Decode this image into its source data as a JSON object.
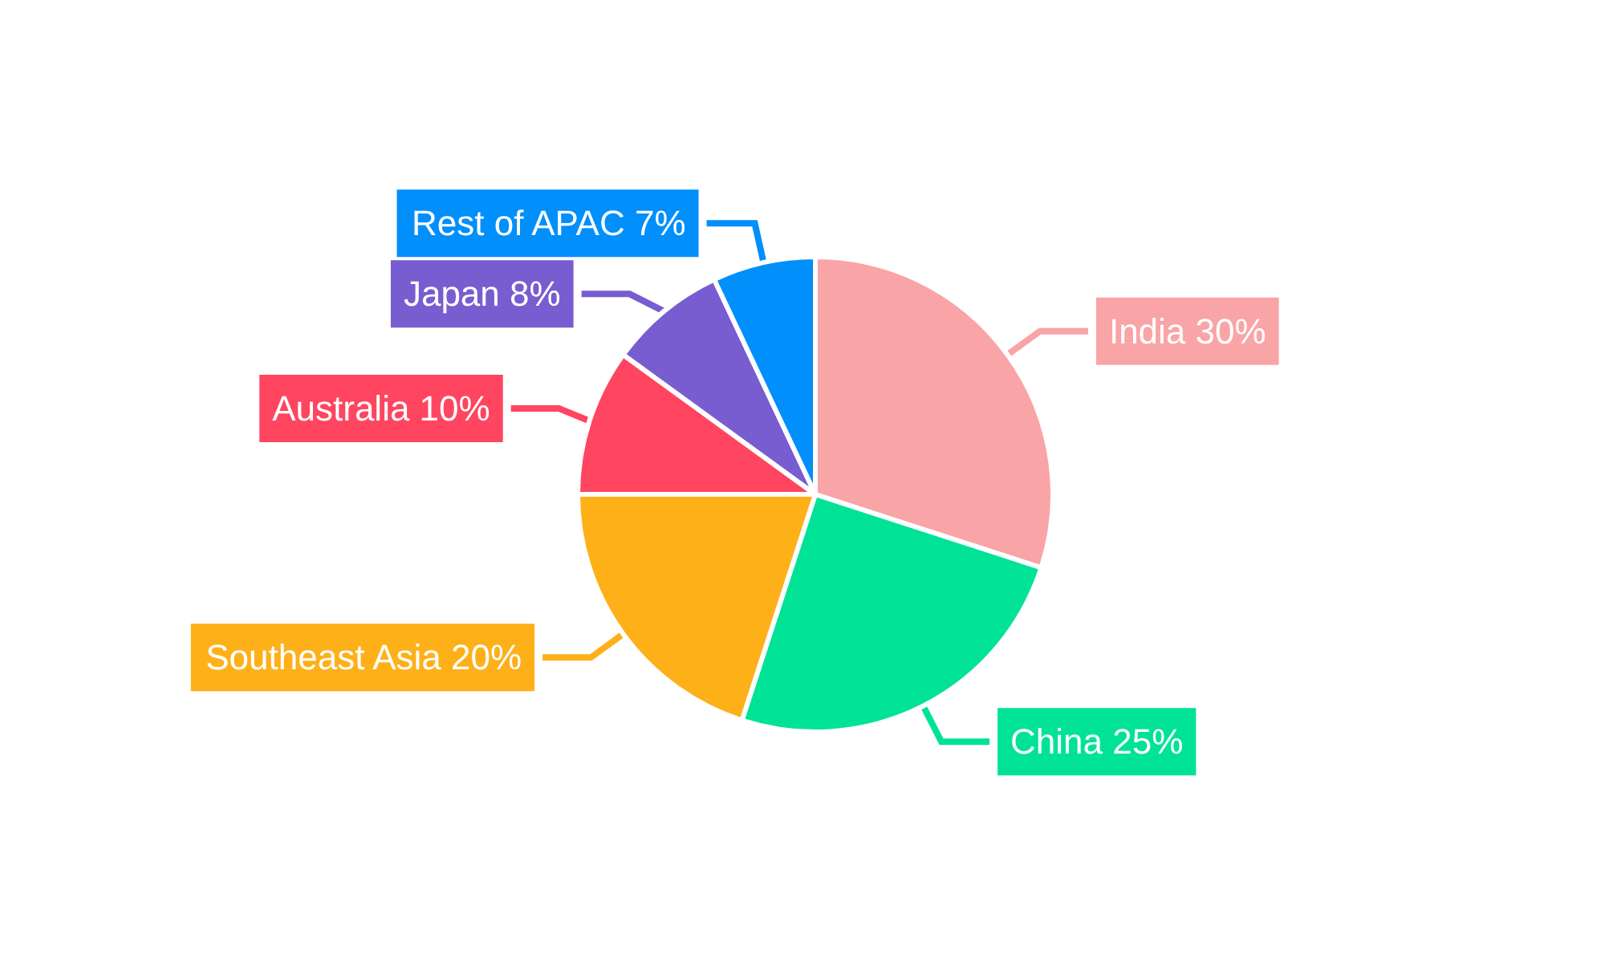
{
  "chart_data": {
    "type": "pie",
    "categories": [
      "India",
      "China",
      "Southeast Asia",
      "Australia",
      "Japan",
      "Rest of APAC"
    ],
    "values": [
      30,
      25,
      20,
      10,
      8,
      7
    ],
    "value_labels": [
      "30%",
      "25%",
      "20%",
      "10%",
      "8%",
      "7%"
    ],
    "colors": [
      "#f9a4a6",
      "#00e396",
      "#feb019",
      "#ff4560",
      "#775dd0",
      "#008ffb"
    ]
  }
}
